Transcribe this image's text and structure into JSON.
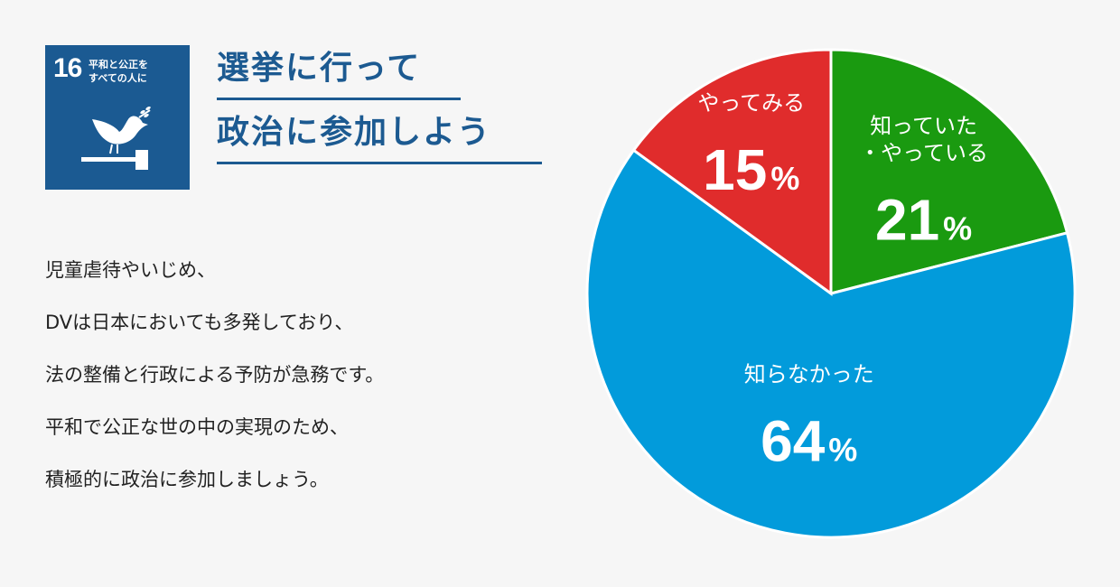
{
  "badge": {
    "number": "16",
    "text": "平和と公正を\nすべての人に",
    "icon": "dove-gavel-icon",
    "color": "#1b5a92"
  },
  "title": {
    "line1": "選挙に行って",
    "line2": "政治に参加しよう",
    "color": "#1c5a91"
  },
  "body": [
    "児童虐待やいじめ、",
    "DVは日本においても多発しており、",
    "法の整備と行政による予防が急務です。",
    "平和で公正な世の中の実現のため、",
    "積極的に政治に参加しましょう。"
  ],
  "chart_data": {
    "type": "pie",
    "unit": "%",
    "slices": [
      {
        "label": [
          "知っていた",
          "・やっている"
        ],
        "value": 21,
        "color": "#1a9a10"
      },
      {
        "label": [
          "知らなかった"
        ],
        "value": 64,
        "color": "#029bdb"
      },
      {
        "label": [
          "やってみる"
        ],
        "value": 15,
        "color": "#e02c2c"
      }
    ],
    "start": "top",
    "direction": "clockwise"
  }
}
